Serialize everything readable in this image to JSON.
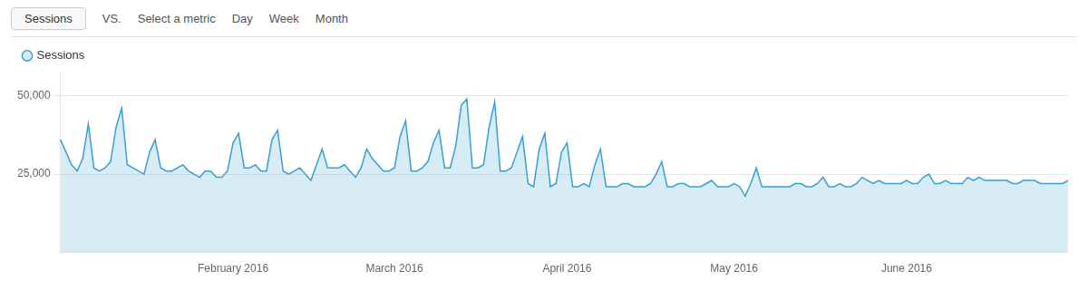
{
  "chart_data": {
    "type": "area",
    "title": "Sessions",
    "annotations": [
      "VS.",
      "Select a metric",
      "Day",
      "Week",
      "Month"
    ],
    "categories": [
      null,
      null,
      null,
      null,
      null,
      null,
      null,
      null,
      null,
      null,
      null,
      null,
      null,
      null,
      null,
      null,
      null,
      null,
      null,
      null,
      null,
      null,
      null,
      null,
      null,
      null,
      null,
      null,
      null,
      null,
      null,
      "February 2016",
      null,
      null,
      null,
      null,
      null,
      null,
      null,
      null,
      null,
      null,
      null,
      null,
      null,
      null,
      null,
      null,
      null,
      null,
      null,
      null,
      null,
      null,
      null,
      null,
      null,
      null,
      null,
      null,
      "March 2016",
      null,
      null,
      null,
      null,
      null,
      null,
      null,
      null,
      null,
      null,
      null,
      null,
      null,
      null,
      null,
      null,
      null,
      null,
      null,
      null,
      null,
      null,
      null,
      null,
      null,
      null,
      null,
      null,
      null,
      null,
      "April 2016",
      null,
      null,
      null,
      null,
      null,
      null,
      null,
      null,
      null,
      null,
      null,
      null,
      null,
      null,
      null,
      null,
      null,
      null,
      null,
      null,
      null,
      null,
      null,
      null,
      null,
      null,
      null,
      null,
      null,
      "May 2016",
      null,
      null,
      null,
      null,
      null,
      null,
      null,
      null,
      null,
      null,
      null,
      null,
      null,
      null,
      null,
      null,
      null,
      null,
      null,
      null,
      null,
      null,
      null,
      null,
      null,
      null,
      null,
      null,
      null,
      null,
      "June 2016",
      null,
      null,
      null,
      null,
      null,
      null,
      null,
      null,
      null,
      null,
      null,
      null,
      null,
      null,
      null,
      null,
      null,
      null,
      null,
      null,
      null,
      null,
      null,
      null,
      null,
      null,
      null,
      null,
      null
    ],
    "series": [
      {
        "name": "Sessions",
        "color": "#3a9fd4",
        "values": [
          36000,
          32000,
          28000,
          26000,
          30000,
          41000,
          27000,
          26000,
          27000,
          29000,
          40000,
          46000,
          28000,
          27000,
          26000,
          25000,
          32000,
          36000,
          27000,
          26000,
          26000,
          27000,
          28000,
          26000,
          25000,
          24000,
          26000,
          26000,
          24000,
          24000,
          26000,
          35000,
          38000,
          27000,
          27000,
          28000,
          26000,
          26000,
          36000,
          39000,
          26000,
          25000,
          26000,
          27000,
          25000,
          23000,
          28000,
          33000,
          27000,
          27000,
          27000,
          28000,
          26000,
          24000,
          27000,
          33000,
          30000,
          28000,
          26000,
          26000,
          27000,
          37000,
          42000,
          26000,
          26000,
          27000,
          29000,
          35000,
          39000,
          27000,
          27000,
          34000,
          47000,
          49000,
          27000,
          27000,
          28000,
          40000,
          48000,
          26000,
          26000,
          27000,
          32000,
          37000,
          22000,
          21000,
          33000,
          38000,
          21000,
          22000,
          32000,
          35000,
          21000,
          21000,
          22000,
          21000,
          28000,
          33000,
          21000,
          21000,
          21000,
          22000,
          22000,
          21000,
          21000,
          21000,
          22000,
          25000,
          29000,
          21000,
          21000,
          22000,
          22000,
          21000,
          21000,
          21000,
          22000,
          23000,
          21000,
          21000,
          21000,
          22000,
          21000,
          18000,
          22000,
          27000,
          21000,
          21000,
          21000,
          21000,
          21000,
          21000,
          22000,
          22000,
          21000,
          21000,
          22000,
          24000,
          21000,
          21000,
          22000,
          21000,
          21000,
          22000,
          24000,
          23000,
          22000,
          23000,
          22000,
          22000,
          22000,
          22000,
          23000,
          22000,
          22000,
          24000,
          25000,
          22000,
          22000,
          23000,
          22000,
          22000,
          22000,
          24000,
          23000,
          24000,
          23000,
          23000,
          23000,
          23000,
          23000,
          22000,
          22000,
          23000,
          23000,
          23000,
          22000,
          22000,
          22000,
          22000,
          22000,
          23000
        ]
      }
    ],
    "ylim": [
      0,
      58000
    ],
    "yticks": [
      {
        "value": 25000,
        "label": "25,000"
      },
      {
        "value": 50000,
        "label": "50,000"
      }
    ],
    "grid": true,
    "legend": "upper left"
  }
}
